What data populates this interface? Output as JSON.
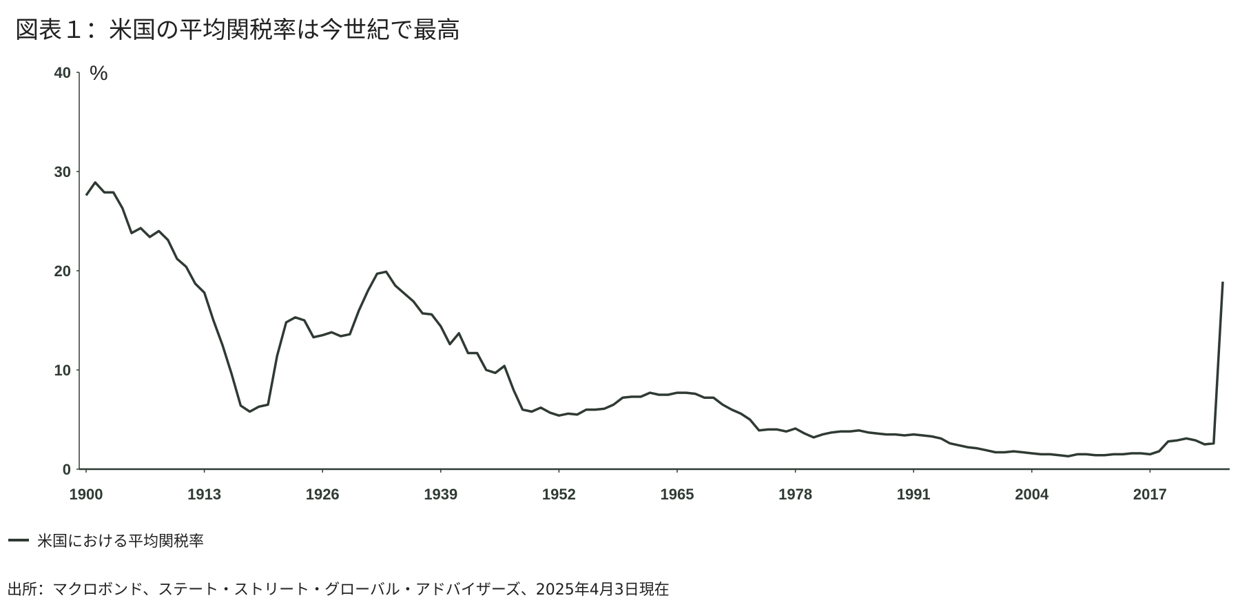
{
  "title": "図表１：米国の平均関税率は今世紀で最高",
  "legend": {
    "label": "米国における平均関税率",
    "color": "#2f3a33"
  },
  "source": "出所：マクロボンド、ステート・ストリート・グローバル・アドバイザーズ、2025年4月3日現在",
  "chart_data": {
    "type": "line",
    "title": "図表１：米国の平均関税率は今世紀で最高",
    "ylabel": "%",
    "xlabel": "",
    "xlim": [
      1900,
      2025
    ],
    "ylim": [
      0,
      40
    ],
    "grid": false,
    "legend_position": "bottom-left",
    "x_ticks": [
      1900,
      1913,
      1926,
      1939,
      1952,
      1965,
      1978,
      1991,
      2004,
      2017
    ],
    "y_ticks": [
      0,
      10,
      20,
      30,
      40
    ],
    "series": [
      {
        "name": "米国における平均関税率",
        "color": "#2f3a33",
        "x": [
          1900,
          1901,
          1902,
          1903,
          1904,
          1905,
          1906,
          1907,
          1908,
          1909,
          1910,
          1911,
          1912,
          1913,
          1914,
          1915,
          1916,
          1917,
          1918,
          1919,
          1920,
          1921,
          1922,
          1923,
          1924,
          1925,
          1926,
          1927,
          1928,
          1929,
          1930,
          1931,
          1932,
          1933,
          1934,
          1935,
          1936,
          1937,
          1938,
          1939,
          1940,
          1941,
          1942,
          1943,
          1944,
          1945,
          1946,
          1947,
          1948,
          1949,
          1950,
          1951,
          1952,
          1953,
          1954,
          1955,
          1956,
          1957,
          1958,
          1959,
          1960,
          1961,
          1962,
          1963,
          1964,
          1965,
          1966,
          1967,
          1968,
          1969,
          1970,
          1971,
          1972,
          1973,
          1974,
          1975,
          1976,
          1977,
          1978,
          1979,
          1980,
          1981,
          1982,
          1983,
          1984,
          1985,
          1986,
          1987,
          1988,
          1989,
          1990,
          1991,
          1992,
          1993,
          1994,
          1995,
          1996,
          1997,
          1998,
          1999,
          2000,
          2001,
          2002,
          2003,
          2004,
          2005,
          2006,
          2007,
          2008,
          2009,
          2010,
          2011,
          2012,
          2013,
          2014,
          2015,
          2016,
          2017,
          2018,
          2019,
          2020,
          2021,
          2022,
          2023,
          2024,
          2025
        ],
        "values": [
          27.6,
          28.9,
          27.9,
          27.9,
          26.3,
          23.8,
          24.3,
          23.4,
          24.0,
          23.1,
          21.2,
          20.4,
          18.7,
          17.8,
          15.0,
          12.5,
          9.6,
          6.4,
          5.8,
          6.3,
          6.5,
          11.4,
          14.8,
          15.3,
          15.0,
          13.3,
          13.5,
          13.8,
          13.4,
          13.6,
          16.0,
          18.0,
          19.7,
          19.9,
          18.5,
          17.7,
          16.9,
          15.7,
          15.6,
          14.4,
          12.6,
          13.7,
          11.7,
          11.7,
          10.0,
          9.7,
          10.4,
          8.0,
          6.0,
          5.8,
          6.2,
          5.7,
          5.4,
          5.6,
          5.5,
          6.0,
          6.0,
          6.1,
          6.5,
          7.2,
          7.3,
          7.3,
          7.7,
          7.5,
          7.5,
          7.7,
          7.7,
          7.6,
          7.2,
          7.2,
          6.5,
          6.0,
          5.6,
          5.0,
          3.9,
          4.0,
          4.0,
          3.8,
          4.1,
          3.6,
          3.2,
          3.5,
          3.7,
          3.8,
          3.8,
          3.9,
          3.7,
          3.6,
          3.5,
          3.5,
          3.4,
          3.5,
          3.4,
          3.3,
          3.1,
          2.6,
          2.4,
          2.2,
          2.1,
          1.9,
          1.7,
          1.7,
          1.8,
          1.7,
          1.6,
          1.5,
          1.5,
          1.4,
          1.3,
          1.5,
          1.5,
          1.4,
          1.4,
          1.5,
          1.5,
          1.6,
          1.6,
          1.5,
          1.8,
          2.8,
          2.9,
          3.1,
          2.9,
          2.5,
          2.6,
          18.9
        ]
      }
    ]
  }
}
